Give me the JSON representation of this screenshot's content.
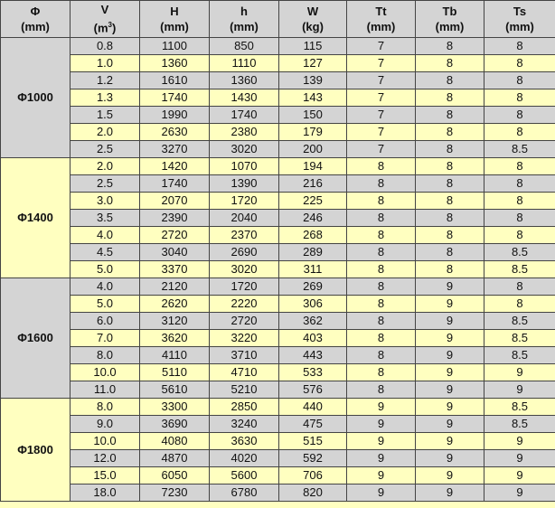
{
  "columns": [
    {
      "name": "Φ",
      "unit": "(mm)"
    },
    {
      "name": "V",
      "unit": "(m",
      "unit_sup": "3",
      "unit_end": ")"
    },
    {
      "name": "H",
      "unit": "(mm)"
    },
    {
      "name": "h",
      "unit": "(mm)"
    },
    {
      "name": "W",
      "unit": "(kg)"
    },
    {
      "name": "Tt",
      "unit": "(mm)"
    },
    {
      "name": "Tb",
      "unit": "(mm)"
    },
    {
      "name": "Ts",
      "unit": "(mm)"
    }
  ],
  "groups": [
    {
      "diameter": "Φ1000",
      "rows": [
        [
          "0.8",
          "1100",
          "850",
          "115",
          "7",
          "8",
          "8"
        ],
        [
          "1.0",
          "1360",
          "1110",
          "127",
          "7",
          "8",
          "8"
        ],
        [
          "1.2",
          "1610",
          "1360",
          "139",
          "7",
          "8",
          "8"
        ],
        [
          "1.3",
          "1740",
          "1430",
          "143",
          "7",
          "8",
          "8"
        ],
        [
          "1.5",
          "1990",
          "1740",
          "150",
          "7",
          "8",
          "8"
        ],
        [
          "2.0",
          "2630",
          "2380",
          "179",
          "7",
          "8",
          "8"
        ],
        [
          "2.5",
          "3270",
          "3020",
          "200",
          "7",
          "8",
          "8.5"
        ]
      ]
    },
    {
      "diameter": "Φ1400",
      "rows": [
        [
          "2.0",
          "1420",
          "1070",
          "194",
          "8",
          "8",
          "8"
        ],
        [
          "2.5",
          "1740",
          "1390",
          "216",
          "8",
          "8",
          "8"
        ],
        [
          "3.0",
          "2070",
          "1720",
          "225",
          "8",
          "8",
          "8"
        ],
        [
          "3.5",
          "2390",
          "2040",
          "246",
          "8",
          "8",
          "8"
        ],
        [
          "4.0",
          "2720",
          "2370",
          "268",
          "8",
          "8",
          "8"
        ],
        [
          "4.5",
          "3040",
          "2690",
          "289",
          "8",
          "8",
          "8.5"
        ],
        [
          "5.0",
          "3370",
          "3020",
          "311",
          "8",
          "8",
          "8.5"
        ]
      ]
    },
    {
      "diameter": "Φ1600",
      "rows": [
        [
          "4.0",
          "2120",
          "1720",
          "269",
          "8",
          "9",
          "8"
        ],
        [
          "5.0",
          "2620",
          "2220",
          "306",
          "8",
          "9",
          "8"
        ],
        [
          "6.0",
          "3120",
          "2720",
          "362",
          "8",
          "9",
          "8.5"
        ],
        [
          "7.0",
          "3620",
          "3220",
          "403",
          "8",
          "9",
          "8.5"
        ],
        [
          "8.0",
          "4110",
          "3710",
          "443",
          "8",
          "9",
          "8.5"
        ],
        [
          "10.0",
          "5110",
          "4710",
          "533",
          "8",
          "9",
          "9"
        ],
        [
          "11.0",
          "5610",
          "5210",
          "576",
          "8",
          "9",
          "9"
        ]
      ]
    },
    {
      "diameter": "Φ1800",
      "rows": [
        [
          "8.0",
          "3300",
          "2850",
          "440",
          "9",
          "9",
          "8.5"
        ],
        [
          "9.0",
          "3690",
          "3240",
          "475",
          "9",
          "9",
          "8.5"
        ],
        [
          "10.0",
          "4080",
          "3630",
          "515",
          "9",
          "9",
          "9"
        ],
        [
          "12.0",
          "4870",
          "4020",
          "592",
          "9",
          "9",
          "9"
        ],
        [
          "15.0",
          "6050",
          "5600",
          "706",
          "9",
          "9",
          "9"
        ],
        [
          "18.0",
          "7230",
          "6780",
          "820",
          "9",
          "9",
          "9"
        ]
      ]
    }
  ],
  "colors": {
    "gray_row": "#d4d4d4",
    "yellow_row": "#ffffc0",
    "border": "#444444"
  }
}
